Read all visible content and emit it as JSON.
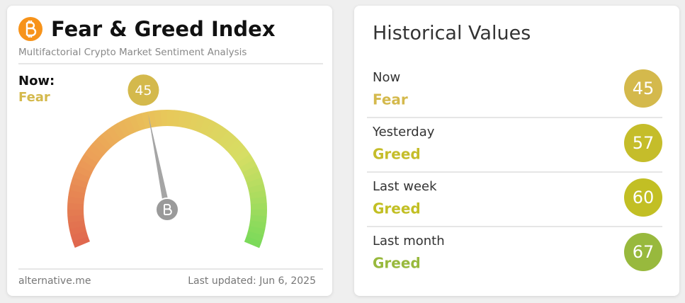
{
  "gauge": {
    "title": "Fear & Greed Index",
    "subtitle": "Multifactorial Crypto Market Sentiment Analysis",
    "now_label": "Now:",
    "classification": "Fear",
    "value": 45,
    "range": [
      0,
      100
    ],
    "color": "#d4b94c",
    "source": "alternative.me",
    "updated": "Last updated: Jun 6, 2025"
  },
  "history": {
    "title": "Historical Values",
    "rows": [
      {
        "label": "Now",
        "classification": "Fear",
        "value": 45,
        "color": "#d4b94c"
      },
      {
        "label": "Yesterday",
        "classification": "Greed",
        "value": 57,
        "color": "#c5bd2a"
      },
      {
        "label": "Last week",
        "classification": "Greed",
        "value": 60,
        "color": "#c2bf24"
      },
      {
        "label": "Last month",
        "classification": "Greed",
        "value": 67,
        "color": "#98b93d"
      }
    ]
  }
}
